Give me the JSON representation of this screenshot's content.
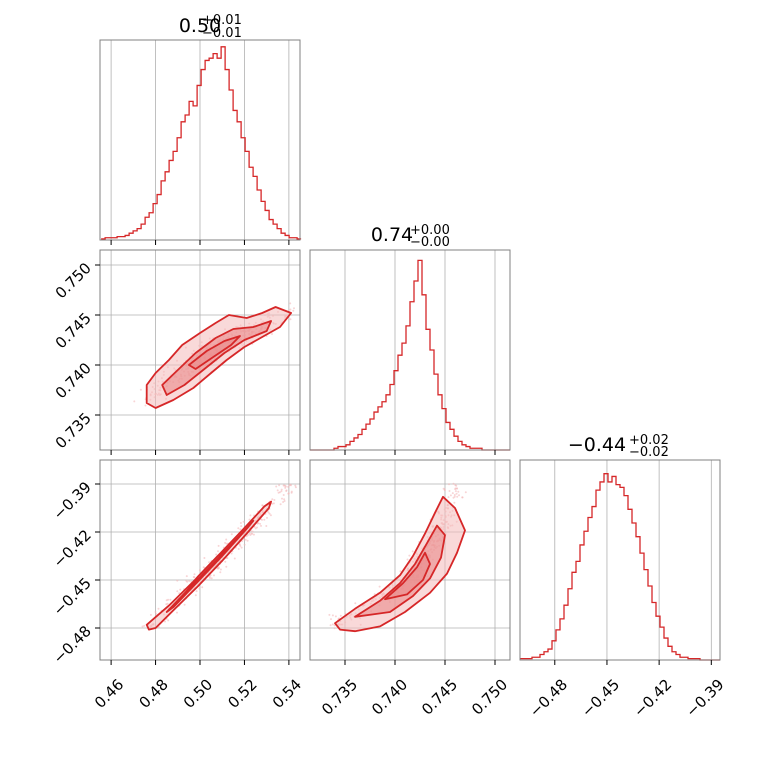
{
  "colors": {
    "accent": "#d62728",
    "accent_fill_light": "#f4b9ba",
    "accent_fill_mid": "#ea8a8b",
    "grid": "#b0b0b0",
    "frame": "#808080"
  },
  "chart_data": [
    {
      "id": "hist-p1",
      "type": "histogram",
      "title": {
        "main": "0.50",
        "upper": "+0.01",
        "lower": "−0.01"
      },
      "xlim": [
        0.455,
        0.545
      ],
      "gridlines_x": [
        0.46,
        0.48,
        0.5,
        0.52,
        0.54
      ],
      "bin_start": 0.4555,
      "bin_width": 0.0018,
      "counts": [
        1,
        2,
        2,
        2,
        3,
        3,
        4,
        6,
        8,
        10,
        14,
        20,
        24,
        32,
        40,
        52,
        60,
        70,
        78,
        90,
        104,
        110,
        122,
        118,
        136,
        150,
        158,
        160,
        164,
        160,
        170,
        150,
        132,
        114,
        104,
        90,
        78,
        64,
        56,
        44,
        34,
        26,
        18,
        14,
        10,
        6,
        4,
        2,
        2,
        1
      ],
      "ymax": 176
    },
    {
      "id": "hist-p2",
      "type": "histogram",
      "title": {
        "main": "0.74",
        "upper": "+0.00",
        "lower": "−0.00"
      },
      "xlim": [
        0.7315,
        0.7515
      ],
      "gridlines_x": [
        0.735,
        0.74,
        0.745,
        0.75
      ],
      "bin_start": 0.7315,
      "bin_width": 0.0004,
      "counts": [
        0,
        0,
        0,
        0,
        0,
        0,
        1,
        2,
        2,
        3,
        5,
        7,
        9,
        12,
        15,
        18,
        22,
        25,
        28,
        32,
        38,
        46,
        55,
        62,
        72,
        86,
        98,
        110,
        90,
        70,
        58,
        44,
        32,
        24,
        16,
        12,
        8,
        5,
        3,
        2,
        1,
        1,
        1,
        0,
        0,
        0,
        0,
        0,
        0,
        0
      ],
      "ymax": 116
    },
    {
      "id": "hist-p3",
      "type": "histogram",
      "title": {
        "main": "−0.44",
        "upper": "+0.02",
        "lower": "−0.02"
      },
      "xlim": [
        -0.5,
        -0.385
      ],
      "gridlines_x": [
        -0.48,
        -0.45,
        -0.42,
        -0.39
      ],
      "bin_start": -0.5,
      "bin_width": 0.0023,
      "counts": [
        1,
        1,
        1,
        2,
        2,
        4,
        6,
        8,
        14,
        22,
        30,
        40,
        52,
        64,
        72,
        84,
        94,
        104,
        112,
        124,
        130,
        136,
        130,
        134,
        128,
        126,
        120,
        110,
        100,
        90,
        78,
        66,
        54,
        42,
        32,
        24,
        16,
        10,
        6,
        4,
        2,
        2,
        1,
        1,
        1,
        0,
        0,
        0,
        0,
        0
      ],
      "ymax": 146
    },
    {
      "id": "scatter-p1-p2",
      "type": "scatter",
      "xlim": [
        0.455,
        0.545
      ],
      "ylim": [
        0.7315,
        0.7515
      ],
      "gridlines_x": [
        0.46,
        0.48,
        0.5,
        0.52,
        0.54
      ],
      "gridlines_y": [
        0.735,
        0.74,
        0.745,
        0.75
      ],
      "y_tick_labels": [
        "0.735",
        "0.740",
        "0.745",
        "0.750"
      ],
      "y_ticks": [
        0.735,
        0.74,
        0.745,
        0.75
      ],
      "ridge": [
        [
          0.478,
          0.7368
        ],
        [
          0.488,
          0.7385
        ],
        [
          0.498,
          0.7405
        ],
        [
          0.508,
          0.7418
        ],
        [
          0.518,
          0.7428
        ],
        [
          0.528,
          0.744
        ],
        [
          0.54,
          0.745
        ]
      ],
      "contours": [
        {
          "level": "outer",
          "points": [
            [
              0.476,
              0.738
            ],
            [
              0.48,
              0.7392
            ],
            [
              0.486,
              0.7405
            ],
            [
              0.492,
              0.742
            ],
            [
              0.5,
              0.7432
            ],
            [
              0.507,
              0.7442
            ],
            [
              0.513,
              0.745
            ],
            [
              0.521,
              0.7447
            ],
            [
              0.528,
              0.7452
            ],
            [
              0.534,
              0.7458
            ],
            [
              0.541,
              0.7452
            ],
            [
              0.536,
              0.7438
            ],
            [
              0.528,
              0.7428
            ],
            [
              0.52,
              0.7418
            ],
            [
              0.512,
              0.7405
            ],
            [
              0.505,
              0.7392
            ],
            [
              0.497,
              0.7377
            ],
            [
              0.488,
              0.7365
            ],
            [
              0.48,
              0.7357
            ],
            [
              0.476,
              0.7362
            ]
          ]
        },
        {
          "level": "mid",
          "points": [
            [
              0.483,
              0.738
            ],
            [
              0.49,
              0.7395
            ],
            [
              0.498,
              0.7412
            ],
            [
              0.507,
              0.7427
            ],
            [
              0.515,
              0.7436
            ],
            [
              0.524,
              0.7438
            ],
            [
              0.532,
              0.7444
            ],
            [
              0.53,
              0.7434
            ],
            [
              0.52,
              0.7425
            ],
            [
              0.511,
              0.7412
            ],
            [
              0.502,
              0.7396
            ],
            [
              0.493,
              0.738
            ],
            [
              0.485,
              0.737
            ]
          ]
        },
        {
          "level": "inner",
          "points": [
            [
              0.495,
              0.74
            ],
            [
              0.503,
              0.7414
            ],
            [
              0.511,
              0.7424
            ],
            [
              0.518,
              0.7429
            ],
            [
              0.514,
              0.742
            ],
            [
              0.506,
              0.7408
            ],
            [
              0.498,
              0.7396
            ]
          ]
        }
      ],
      "scatter_spread": [
        0.0085,
        0.0014
      ],
      "scatter_count": 340
    },
    {
      "id": "scatter-p1-p3",
      "type": "scatter",
      "xlim": [
        0.455,
        0.545
      ],
      "ylim": [
        -0.5,
        -0.375
      ],
      "gridlines_x": [
        0.46,
        0.48,
        0.5,
        0.52,
        0.54
      ],
      "gridlines_y": [
        -0.48,
        -0.45,
        -0.42,
        -0.39
      ],
      "y_tick_labels": [
        "−0.48",
        "−0.45",
        "−0.42",
        "−0.39"
      ],
      "y_ticks": [
        -0.48,
        -0.45,
        -0.42,
        -0.39
      ],
      "x_tick_labels": [
        "0.46",
        "0.48",
        "0.50",
        "0.52",
        "0.54"
      ],
      "x_ticks": [
        0.46,
        0.48,
        0.5,
        0.52,
        0.54
      ],
      "ridge": [
        [
          0.478,
          -0.479
        ],
        [
          0.49,
          -0.464
        ],
        [
          0.5,
          -0.45
        ],
        [
          0.51,
          -0.436
        ],
        [
          0.52,
          -0.421
        ],
        [
          0.53,
          -0.406
        ],
        [
          0.54,
          -0.392
        ]
      ],
      "contours": [
        {
          "level": "outer",
          "points": [
            [
              0.476,
              -0.478
            ],
            [
              0.486,
              -0.466
            ],
            [
              0.497,
              -0.451
            ],
            [
              0.508,
              -0.435
            ],
            [
              0.519,
              -0.419
            ],
            [
              0.529,
              -0.404
            ],
            [
              0.532,
              -0.401
            ],
            [
              0.531,
              -0.405
            ],
            [
              0.521,
              -0.421
            ],
            [
              0.51,
              -0.438
            ],
            [
              0.499,
              -0.454
            ],
            [
              0.488,
              -0.469
            ],
            [
              0.48,
              -0.48
            ],
            [
              0.477,
              -0.481
            ]
          ]
        },
        {
          "level": "mid",
          "points": [
            [
              0.485,
              -0.47
            ],
            [
              0.496,
              -0.454
            ],
            [
              0.507,
              -0.438
            ],
            [
              0.518,
              -0.422
            ],
            [
              0.524,
              -0.413
            ],
            [
              0.521,
              -0.418
            ],
            [
              0.51,
              -0.435
            ],
            [
              0.499,
              -0.451
            ],
            [
              0.488,
              -0.467
            ]
          ]
        },
        {
          "level": "inner",
          "points": [
            [
              0.494,
              -0.457
            ],
            [
              0.503,
              -0.444
            ],
            [
              0.512,
              -0.431
            ],
            [
              0.508,
              -0.435
            ],
            [
              0.499,
              -0.448
            ]
          ]
        }
      ],
      "scatter_spread": [
        0.0075,
        0.003
      ],
      "scatter_count": 340
    },
    {
      "id": "scatter-p2-p3",
      "type": "scatter",
      "xlim": [
        0.7315,
        0.7515
      ],
      "ylim": [
        -0.5,
        -0.375
      ],
      "gridlines_x": [
        0.735,
        0.74,
        0.745,
        0.75
      ],
      "gridlines_y": [
        -0.48,
        -0.45,
        -0.42,
        -0.39
      ],
      "x_tick_labels": [
        "0.735",
        "0.740",
        "0.745",
        "0.750"
      ],
      "x_ticks": [
        0.735,
        0.74,
        0.745,
        0.75
      ],
      "ridge": [
        [
          0.7343,
          -0.4765
        ],
        [
          0.738,
          -0.464
        ],
        [
          0.741,
          -0.451
        ],
        [
          0.7428,
          -0.437
        ],
        [
          0.744,
          -0.423
        ],
        [
          0.7452,
          -0.408
        ],
        [
          0.746,
          -0.395
        ]
      ],
      "contours": [
        {
          "level": "outer",
          "points": [
            [
              0.734,
              -0.477
            ],
            [
              0.736,
              -0.468
            ],
            [
              0.7385,
              -0.458
            ],
            [
              0.7405,
              -0.447
            ],
            [
              0.7418,
              -0.435
            ],
            [
              0.743,
              -0.421
            ],
            [
              0.744,
              -0.408
            ],
            [
              0.7448,
              -0.398
            ],
            [
              0.746,
              -0.405
            ],
            [
              0.747,
              -0.419
            ],
            [
              0.7462,
              -0.433
            ],
            [
              0.7452,
              -0.446
            ],
            [
              0.7435,
              -0.458
            ],
            [
              0.741,
              -0.47
            ],
            [
              0.7385,
              -0.479
            ],
            [
              0.736,
              -0.482
            ],
            [
              0.7345,
              -0.481
            ]
          ]
        },
        {
          "level": "mid",
          "points": [
            [
              0.736,
              -0.473
            ],
            [
              0.7385,
              -0.463
            ],
            [
              0.7405,
              -0.452
            ],
            [
              0.742,
              -0.44
            ],
            [
              0.7432,
              -0.427
            ],
            [
              0.7442,
              -0.416
            ],
            [
              0.745,
              -0.422
            ],
            [
              0.7446,
              -0.436
            ],
            [
              0.7435,
              -0.449
            ],
            [
              0.7418,
              -0.46
            ],
            [
              0.7395,
              -0.47
            ]
          ]
        },
        {
          "level": "inner",
          "points": [
            [
              0.739,
              -0.462
            ],
            [
              0.7408,
              -0.452
            ],
            [
              0.7422,
              -0.442
            ],
            [
              0.743,
              -0.433
            ],
            [
              0.7435,
              -0.44
            ],
            [
              0.7428,
              -0.45
            ],
            [
              0.7412,
              -0.459
            ]
          ]
        }
      ],
      "scatter_spread": [
        0.0016,
        0.008
      ],
      "scatter_count": 340
    }
  ]
}
